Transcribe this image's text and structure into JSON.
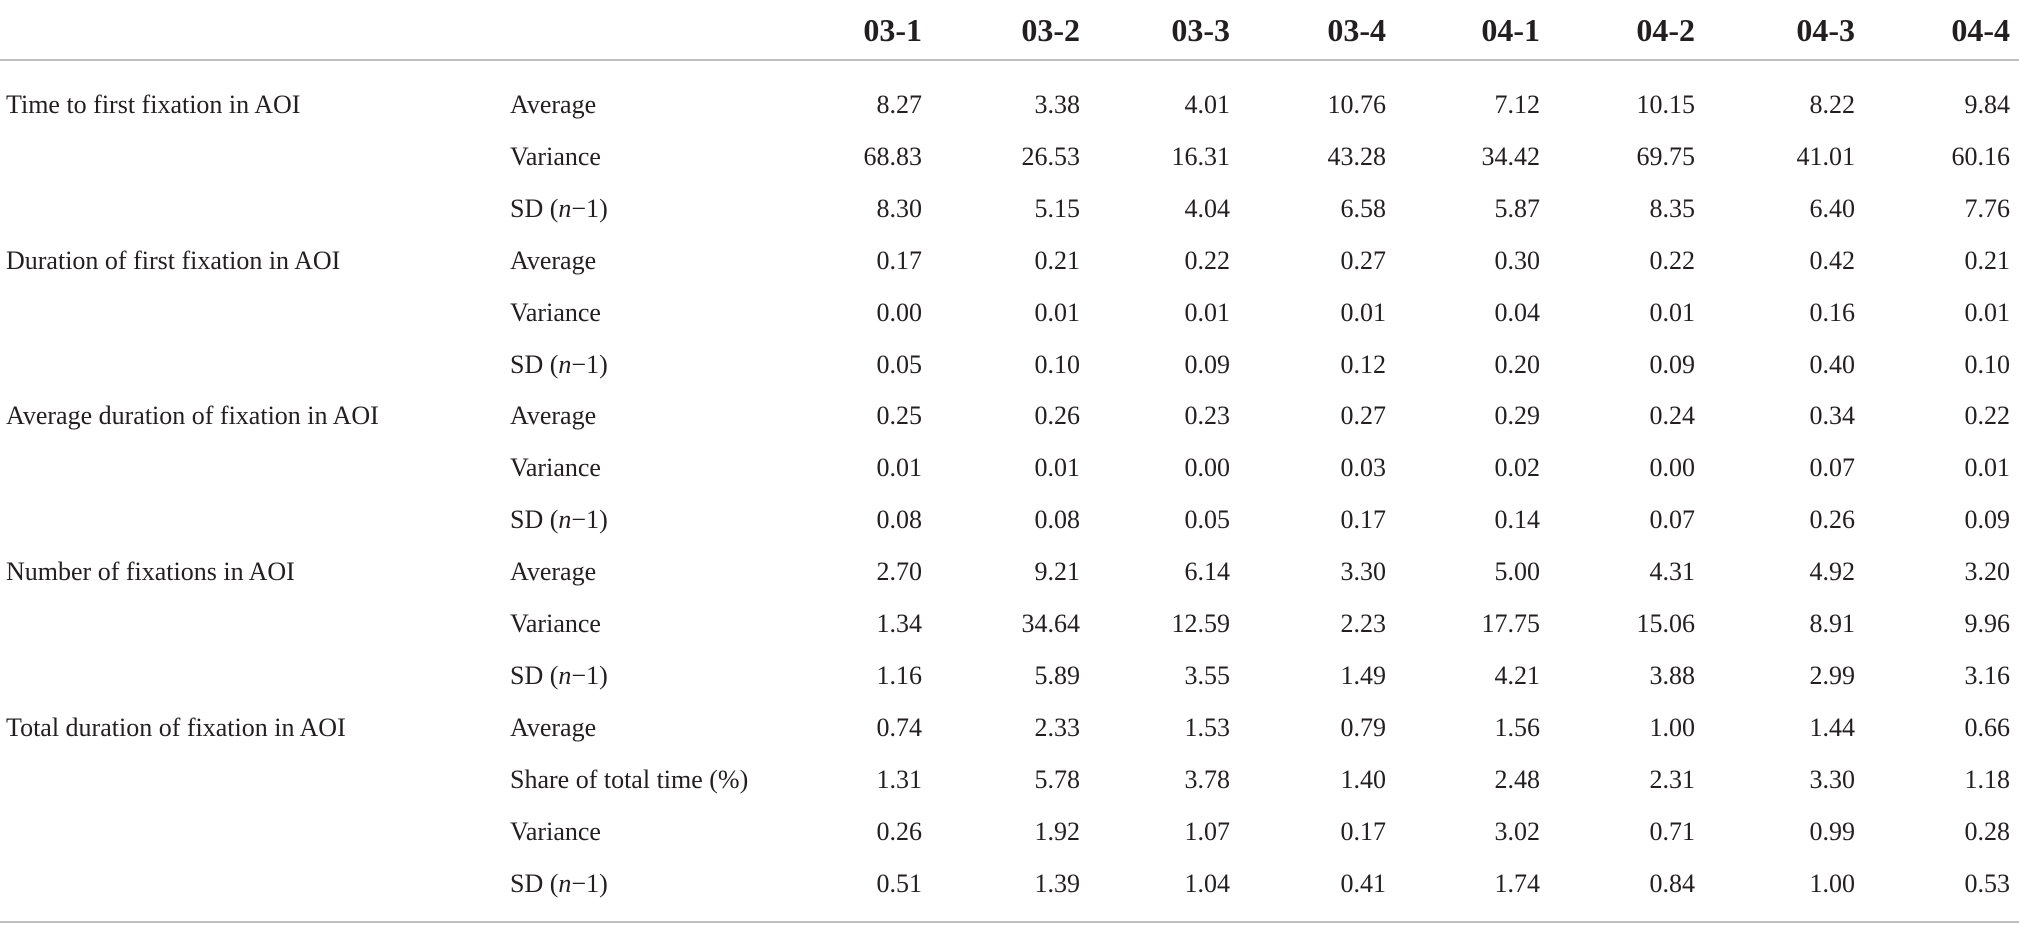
{
  "columns": [
    "03-1",
    "03-2",
    "03-3",
    "03-4",
    "04-1",
    "04-2",
    "04-3",
    "04-4"
  ],
  "rows": [
    {
      "metric": "Time to first fixation in AOI",
      "stat": "Average",
      "values": [
        "8.27",
        "3.38",
        "4.01",
        "10.76",
        "7.12",
        "10.15",
        "8.22",
        "9.84"
      ]
    },
    {
      "metric": "",
      "stat": "Variance",
      "values": [
        "68.83",
        "26.53",
        "16.31",
        "43.28",
        "34.42",
        "69.75",
        "41.01",
        "60.16"
      ]
    },
    {
      "metric": "",
      "stat": "SD (n−1)",
      "values": [
        "8.30",
        "5.15",
        "4.04",
        "6.58",
        "5.87",
        "8.35",
        "6.40",
        "7.76"
      ]
    },
    {
      "metric": "Duration of first fixation in AOI",
      "stat": "Average",
      "values": [
        "0.17",
        "0.21",
        "0.22",
        "0.27",
        "0.30",
        "0.22",
        "0.42",
        "0.21"
      ]
    },
    {
      "metric": "",
      "stat": "Variance",
      "values": [
        "0.00",
        "0.01",
        "0.01",
        "0.01",
        "0.04",
        "0.01",
        "0.16",
        "0.01"
      ]
    },
    {
      "metric": "",
      "stat": "SD (n−1)",
      "values": [
        "0.05",
        "0.10",
        "0.09",
        "0.12",
        "0.20",
        "0.09",
        "0.40",
        "0.10"
      ]
    },
    {
      "metric": "Average duration of fixation in AOI",
      "stat": "Average",
      "values": [
        "0.25",
        "0.26",
        "0.23",
        "0.27",
        "0.29",
        "0.24",
        "0.34",
        "0.22"
      ]
    },
    {
      "metric": "",
      "stat": "Variance",
      "values": [
        "0.01",
        "0.01",
        "0.00",
        "0.03",
        "0.02",
        "0.00",
        "0.07",
        "0.01"
      ]
    },
    {
      "metric": "",
      "stat": "SD (n−1)",
      "values": [
        "0.08",
        "0.08",
        "0.05",
        "0.17",
        "0.14",
        "0.07",
        "0.26",
        "0.09"
      ]
    },
    {
      "metric": "Number of fixations in AOI",
      "stat": "Average",
      "values": [
        "2.70",
        "9.21",
        "6.14",
        "3.30",
        "5.00",
        "4.31",
        "4.92",
        "3.20"
      ]
    },
    {
      "metric": "",
      "stat": "Variance",
      "values": [
        "1.34",
        "34.64",
        "12.59",
        "2.23",
        "17.75",
        "15.06",
        "8.91",
        "9.96"
      ]
    },
    {
      "metric": "",
      "stat": "SD (n−1)",
      "values": [
        "1.16",
        "5.89",
        "3.55",
        "1.49",
        "4.21",
        "3.88",
        "2.99",
        "3.16"
      ]
    },
    {
      "metric": "Total duration of fixation in AOI",
      "stat": "Average",
      "values": [
        "0.74",
        "2.33",
        "1.53",
        "0.79",
        "1.56",
        "1.00",
        "1.44",
        "0.66"
      ]
    },
    {
      "metric": "",
      "stat": "Share of total time (%)",
      "values": [
        "1.31",
        "5.78",
        "3.78",
        "1.40",
        "2.48",
        "2.31",
        "3.30",
        "1.18"
      ]
    },
    {
      "metric": "",
      "stat": "Variance",
      "values": [
        "0.26",
        "1.92",
        "1.07",
        "0.17",
        "3.02",
        "0.71",
        "0.99",
        "0.28"
      ]
    },
    {
      "metric": "",
      "stat": "SD (n−1)",
      "values": [
        "0.51",
        "1.39",
        "1.04",
        "0.41",
        "1.74",
        "0.84",
        "1.00",
        "0.53"
      ]
    }
  ]
}
